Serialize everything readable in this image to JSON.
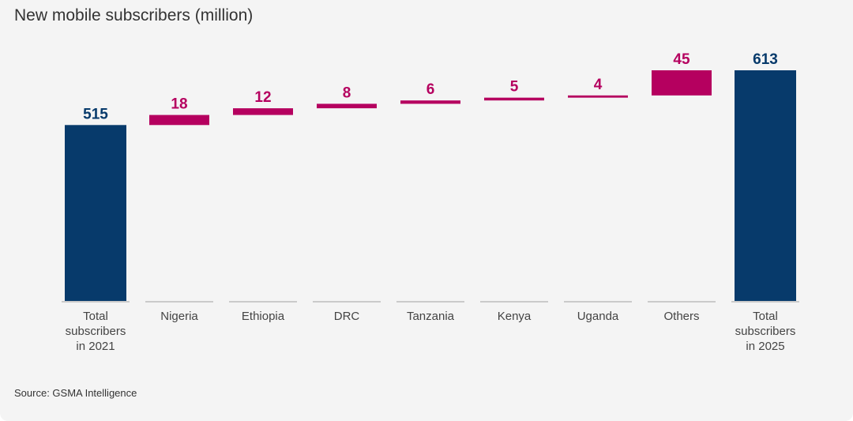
{
  "chart_data": {
    "type": "waterfall",
    "title": "New mobile subscribers (million)",
    "source": "Source: GSMA Intelligence",
    "categories": [
      [
        "Total",
        "subscribers",
        "in 2021"
      ],
      [
        "Nigeria"
      ],
      [
        "Ethiopia"
      ],
      [
        "DRC"
      ],
      [
        "Tanzania"
      ],
      [
        "Kenya"
      ],
      [
        "Uganda"
      ],
      [
        "Others"
      ],
      [
        "Total",
        "subscribers",
        "in 2025"
      ]
    ],
    "values": [
      515,
      18,
      12,
      8,
      6,
      5,
      4,
      45,
      613
    ],
    "kinds": [
      "total",
      "delta",
      "delta",
      "delta",
      "delta",
      "delta",
      "delta",
      "delta",
      "total"
    ],
    "ylim": [
      200,
      613
    ],
    "grid": false,
    "colors": {
      "total": "#073a6b",
      "delta": "#b5005f",
      "axis": "#bbbbbb",
      "label": "#444444"
    }
  }
}
